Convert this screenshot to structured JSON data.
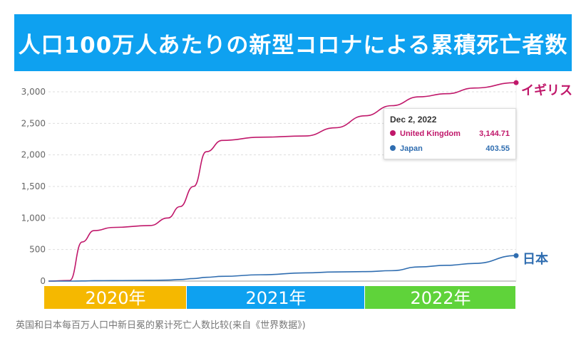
{
  "title": "人口100万人あたりの新型コロナによる累積死亡者数",
  "caption": "英国和日本每百万人口中新日冕的累计死亡人数比较(来自《世界数据》)",
  "series_labels": {
    "uk": "イギリス",
    "japan": "日本"
  },
  "colors": {
    "uk": "#c0176a",
    "japan": "#2f6db0",
    "banner": "#0ea1f0",
    "y2020": "#f5b800",
    "y2021": "#0ea1f0",
    "y2022": "#5fd33a"
  },
  "tooltip": {
    "date": "Dec 2, 2022",
    "rows": [
      {
        "name": "United Kingdom",
        "value": "3,144.71"
      },
      {
        "name": "Japan",
        "value": "403.55"
      }
    ]
  },
  "chart_data": {
    "type": "line",
    "ylim": [
      0,
      3000
    ],
    "yticks": [
      "0",
      "500",
      "1,000",
      "1,500",
      "2,000",
      "2,500",
      "3,000"
    ],
    "grid": true,
    "year_bands": [
      "2020年",
      "2021年",
      "2022年"
    ],
    "x": [
      "2020-01-22",
      "2020-03-15",
      "2020-04-15",
      "2020-05-15",
      "2020-07-01",
      "2020-10-01",
      "2020-11-15",
      "2020-12-15",
      "2021-01-15",
      "2021-02-10",
      "2021-03-15",
      "2021-06-01",
      "2021-09-01",
      "2021-11-01",
      "2022-01-01",
      "2022-03-01",
      "2022-05-01",
      "2022-07-01",
      "2022-09-01",
      "2022-12-02"
    ],
    "series": [
      {
        "name": "United Kingdom",
        "values": [
          0,
          10,
          620,
          800,
          850,
          880,
          1000,
          1180,
          1500,
          2050,
          2230,
          2280,
          2300,
          2430,
          2620,
          2780,
          2920,
          2970,
          3060,
          3144.71
        ]
      },
      {
        "name": "Japan",
        "values": [
          0,
          0,
          2,
          6,
          8,
          12,
          16,
          25,
          40,
          60,
          75,
          100,
          130,
          145,
          150,
          165,
          225,
          250,
          280,
          403.55
        ]
      }
    ]
  }
}
